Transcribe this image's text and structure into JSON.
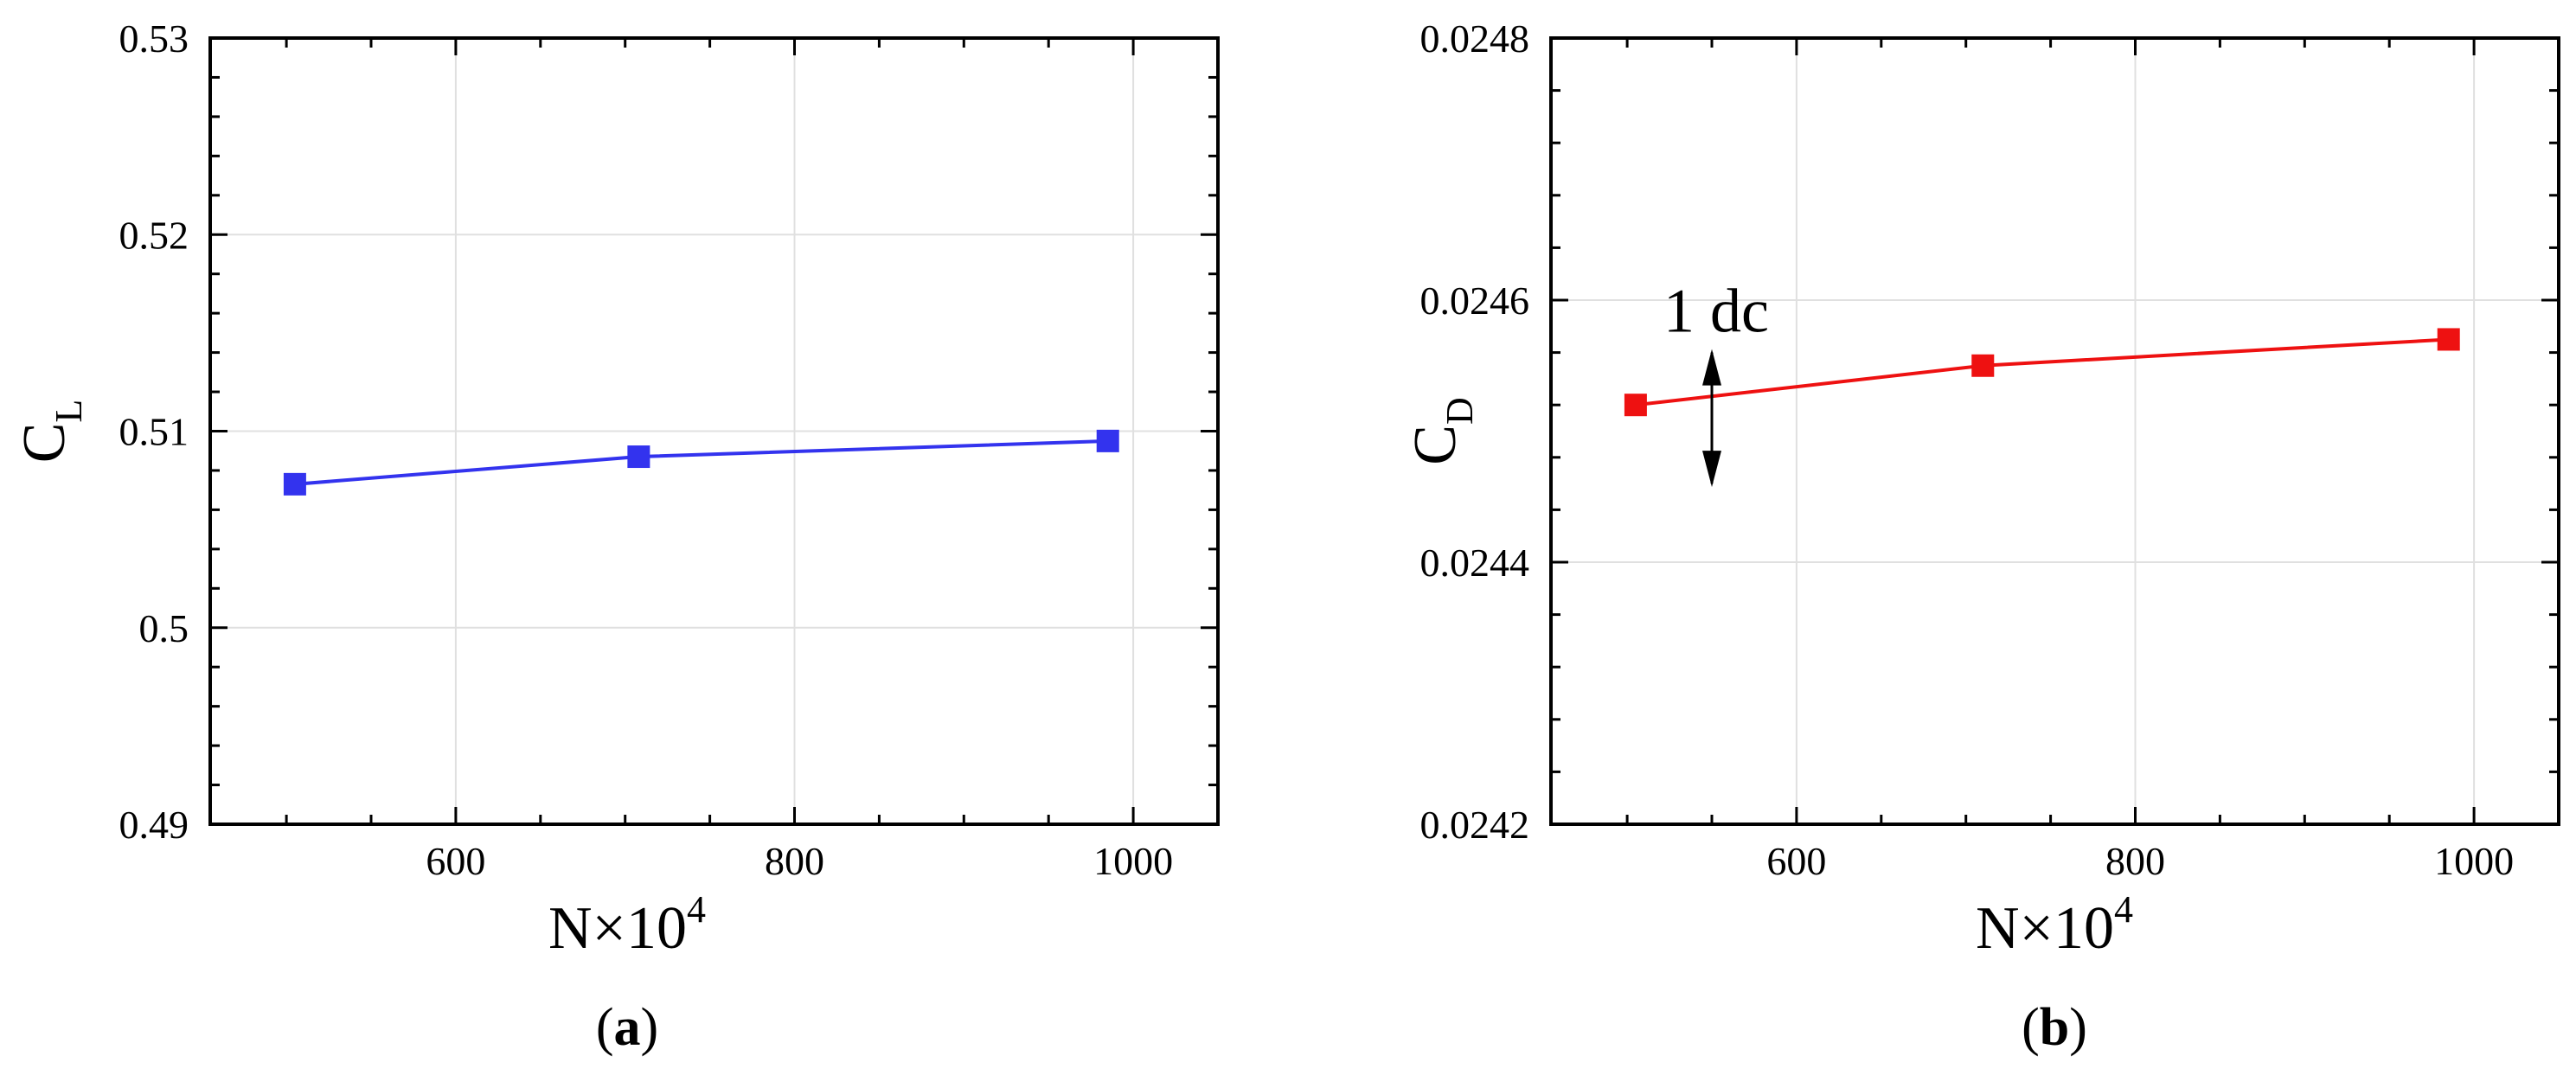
{
  "chart_data": [
    {
      "type": "line",
      "panel_label": "(a)",
      "panel_letter": "a",
      "xlabel": "N×10",
      "xlabel_sup": "4",
      "ylabel": "C",
      "ylabel_sub": "L",
      "xlim": [
        455,
        1050
      ],
      "ylim": [
        0.49,
        0.53
      ],
      "xticks": [
        600,
        800,
        1000
      ],
      "xtick_labels": [
        "600",
        "800",
        "1000"
      ],
      "yticks": [
        0.49,
        0.5,
        0.51,
        0.52,
        0.53
      ],
      "ytick_labels": [
        "0.49",
        "0.5",
        "0.51",
        "0.52",
        "0.53"
      ],
      "grid": true,
      "series": [
        {
          "color": "#3333ee",
          "marker": "square",
          "x": [
            505,
            708,
            985
          ],
          "y": [
            0.5073,
            0.5087,
            0.5095
          ]
        }
      ]
    },
    {
      "type": "line",
      "panel_label": "(b)",
      "panel_letter": "b",
      "xlabel": "N×10",
      "xlabel_sup": "4",
      "ylabel": "C",
      "ylabel_sub": "D",
      "xlim": [
        455,
        1050
      ],
      "ylim": [
        0.0242,
        0.0248
      ],
      "xticks": [
        600,
        800,
        1000
      ],
      "xtick_labels": [
        "600",
        "800",
        "1000"
      ],
      "yticks": [
        0.0242,
        0.0244,
        0.0246,
        0.0248
      ],
      "ytick_labels": [
        "0.0242",
        "0.0244",
        "0.0246",
        "0.0248"
      ],
      "grid": true,
      "annotation": {
        "text": "1 dc",
        "x": 550,
        "y_from": 0.02456,
        "y_to": 0.02446
      },
      "series": [
        {
          "color": "#ee1111",
          "marker": "square",
          "x": [
            505,
            710,
            985
          ],
          "y": [
            0.02452,
            0.02455,
            0.02457
          ]
        }
      ]
    }
  ]
}
